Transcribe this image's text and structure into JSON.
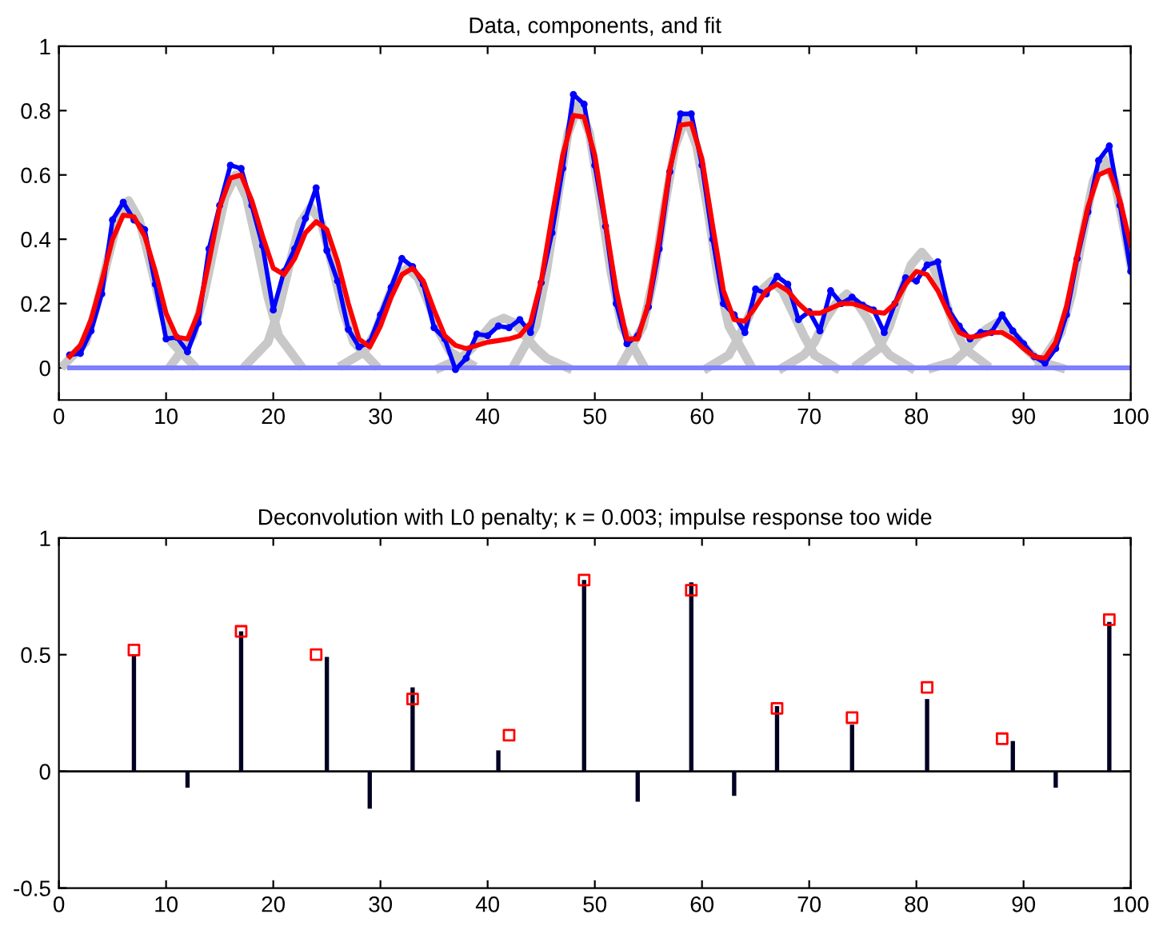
{
  "chart_data": [
    {
      "type": "line",
      "title": "Data, components, and fit",
      "xlim": [
        0,
        100
      ],
      "ylim": [
        -0.1,
        1
      ],
      "xticks": [
        0,
        10,
        20,
        30,
        40,
        50,
        60,
        70,
        80,
        90,
        100
      ],
      "yticks": [
        0,
        0.2,
        0.4,
        0.6,
        0.8,
        1
      ],
      "grid": false,
      "legend": false,
      "series": [
        {
          "color": "#c8c8c8",
          "x": [
            0.5,
            2.5,
            3.5,
            4.5,
            5.5,
            6.5,
            7.5,
            8.5,
            9.5,
            10.5,
            12.5
          ],
          "values": [
            0.01,
            0.08,
            0.19,
            0.33,
            0.46,
            0.52,
            0.46,
            0.33,
            0.19,
            0.08,
            0.01
          ]
        },
        {
          "color": "#c8c8c8",
          "x": [
            10.5,
            12.5,
            13.5,
            14.5,
            15.5,
            16.5,
            17.5,
            18.5,
            19.5,
            20.5,
            22.5
          ],
          "values": [
            0.01,
            0.1,
            0.22,
            0.38,
            0.53,
            0.6,
            0.53,
            0.38,
            0.22,
            0.1,
            0.01
          ]
        },
        {
          "color": "#c8c8c8",
          "x": [
            17.5,
            19.5,
            20.5,
            21.5,
            22.5,
            23.5,
            24.5,
            25.5,
            26.5,
            27.5,
            29.5
          ],
          "values": [
            0.01,
            0.08,
            0.18,
            0.32,
            0.45,
            0.5,
            0.45,
            0.32,
            0.18,
            0.08,
            0.01
          ]
        },
        {
          "color": "#c8c8c8",
          "x": [
            26.5,
            28.5,
            29.5,
            30.5,
            31.5,
            32.5,
            33.5,
            34.5,
            35.5,
            36.5,
            38.5
          ],
          "values": [
            0.01,
            0.05,
            0.11,
            0.2,
            0.28,
            0.31,
            0.28,
            0.2,
            0.11,
            0.05,
            0.01
          ]
        },
        {
          "color": "#c8c8c8",
          "x": [
            35.5,
            37.5,
            38.5,
            39.5,
            40.5,
            41.5,
            42.5,
            43.5,
            44.5,
            45.5,
            47.5
          ],
          "values": [
            0,
            0.03,
            0.06,
            0.1,
            0.14,
            0.155,
            0.14,
            0.1,
            0.06,
            0.03,
            0
          ]
        },
        {
          "color": "#c8c8c8",
          "x": [
            42.5,
            44.5,
            45.5,
            46.5,
            47.5,
            48.5,
            49.5,
            50.5,
            51.5,
            52.5,
            54.5
          ],
          "values": [
            0.01,
            0.13,
            0.3,
            0.52,
            0.73,
            0.82,
            0.73,
            0.52,
            0.3,
            0.13,
            0.01
          ]
        },
        {
          "color": "#c8c8c8",
          "x": [
            52.5,
            54.5,
            55.5,
            56.5,
            57.5,
            58.5,
            59.5,
            60.5,
            61.5,
            62.5,
            64.5
          ],
          "values": [
            0.01,
            0.13,
            0.28,
            0.5,
            0.69,
            0.78,
            0.69,
            0.5,
            0.28,
            0.13,
            0.01
          ]
        },
        {
          "color": "#c8c8c8",
          "x": [
            60.5,
            62.5,
            63.5,
            64.5,
            65.5,
            66.5,
            67.5,
            68.5,
            69.5,
            70.5,
            72.5
          ],
          "values": [
            0,
            0.04,
            0.1,
            0.17,
            0.24,
            0.27,
            0.24,
            0.17,
            0.1,
            0.04,
            0
          ]
        },
        {
          "color": "#c8c8c8",
          "x": [
            67.5,
            69.5,
            70.5,
            71.5,
            72.5,
            73.5,
            74.5,
            75.5,
            76.5,
            77.5,
            79.5
          ],
          "values": [
            0,
            0.04,
            0.08,
            0.15,
            0.2,
            0.23,
            0.2,
            0.15,
            0.08,
            0.04,
            0
          ]
        },
        {
          "color": "#c8c8c8",
          "x": [
            74.5,
            76.5,
            77.5,
            78.5,
            79.5,
            80.5,
            81.5,
            82.5,
            83.5,
            84.5,
            86.5
          ],
          "values": [
            0.01,
            0.06,
            0.13,
            0.23,
            0.32,
            0.36,
            0.32,
            0.23,
            0.13,
            0.06,
            0.01
          ]
        },
        {
          "color": "#c8c8c8",
          "x": [
            81.5,
            83.5,
            84.5,
            85.5,
            86.5,
            87.5,
            88.5,
            89.5,
            90.5,
            91.5,
            93.5
          ],
          "values": [
            0,
            0.02,
            0.05,
            0.09,
            0.12,
            0.14,
            0.12,
            0.09,
            0.05,
            0.02,
            0
          ]
        },
        {
          "color": "#c8c8c8",
          "x": [
            91.5,
            93.5,
            94.5,
            95.5,
            96.5,
            97.5,
            98.5,
            99.5,
            100
          ],
          "values": [
            0.01,
            0.11,
            0.23,
            0.41,
            0.58,
            0.65,
            0.58,
            0.41,
            0.32
          ]
        },
        {
          "color": "#7f7fff",
          "x": [
            1,
            100
          ],
          "values": [
            0,
            0
          ]
        },
        {
          "color": "#0000ff",
          "marker": "circle",
          "x": [
            1,
            2,
            3,
            4,
            5,
            6,
            7,
            8,
            9,
            10,
            11,
            12,
            13,
            14,
            15,
            16,
            17,
            18,
            19,
            20,
            21,
            22,
            23,
            24,
            25,
            26,
            27,
            28,
            29,
            30,
            31,
            32,
            33,
            34,
            35,
            36,
            37,
            38,
            39,
            40,
            41,
            42,
            43,
            44,
            45,
            46,
            47,
            48,
            49,
            50,
            51,
            52,
            53,
            54,
            55,
            56,
            57,
            58,
            59,
            60,
            61,
            62,
            63,
            64,
            65,
            66,
            67,
            68,
            69,
            70,
            71,
            72,
            73,
            74,
            75,
            76,
            77,
            78,
            79,
            80,
            81,
            82,
            83,
            84,
            85,
            86,
            87,
            88,
            89,
            90,
            91,
            92,
            93,
            94,
            95,
            96,
            97,
            98,
            99,
            100
          ],
          "values": [
            0.04,
            0.045,
            0.115,
            0.23,
            0.46,
            0.515,
            0.46,
            0.43,
            0.26,
            0.09,
            0.095,
            0.05,
            0.14,
            0.37,
            0.505,
            0.63,
            0.62,
            0.505,
            0.38,
            0.18,
            0.3,
            0.37,
            0.465,
            0.56,
            0.365,
            0.27,
            0.12,
            0.065,
            0.08,
            0.165,
            0.25,
            0.34,
            0.315,
            0.26,
            0.125,
            0.09,
            -0.005,
            0.03,
            0.105,
            0.1,
            0.13,
            0.125,
            0.15,
            0.11,
            0.265,
            0.42,
            0.62,
            0.85,
            0.82,
            0.63,
            0.44,
            0.2,
            0.075,
            0.1,
            0.19,
            0.37,
            0.61,
            0.79,
            0.79,
            0.63,
            0.4,
            0.2,
            0.165,
            0.11,
            0.245,
            0.23,
            0.285,
            0.26,
            0.15,
            0.175,
            0.115,
            0.24,
            0.2,
            0.22,
            0.195,
            0.18,
            0.11,
            0.2,
            0.28,
            0.27,
            0.32,
            0.33,
            0.18,
            0.13,
            0.09,
            0.11,
            0.11,
            0.165,
            0.115,
            0.075,
            0.035,
            0.015,
            0.06,
            0.165,
            0.34,
            0.485,
            0.645,
            0.69,
            0.505,
            0.3
          ]
        },
        {
          "color": "#ff0000",
          "x": [
            1,
            2,
            3,
            4,
            5,
            6,
            7,
            8,
            9,
            10,
            11,
            12,
            13,
            14,
            15,
            16,
            17,
            18,
            19,
            20,
            21,
            22,
            23,
            24,
            25,
            26,
            27,
            28,
            29,
            30,
            31,
            32,
            33,
            34,
            35,
            36,
            37,
            38,
            39,
            40,
            41,
            42,
            43,
            44,
            45,
            46,
            47,
            48,
            49,
            50,
            51,
            52,
            53,
            54,
            55,
            56,
            57,
            58,
            59,
            60,
            61,
            62,
            63,
            64,
            65,
            66,
            67,
            68,
            69,
            70,
            71,
            72,
            73,
            74,
            75,
            76,
            77,
            78,
            79,
            80,
            81,
            82,
            83,
            84,
            85,
            86,
            87,
            88,
            89,
            90,
            91,
            92,
            93,
            94,
            95,
            96,
            97,
            98,
            99,
            100
          ],
          "values": [
            0.035,
            0.07,
            0.15,
            0.27,
            0.4,
            0.475,
            0.47,
            0.41,
            0.3,
            0.17,
            0.095,
            0.09,
            0.17,
            0.33,
            0.5,
            0.59,
            0.6,
            0.52,
            0.41,
            0.31,
            0.29,
            0.34,
            0.42,
            0.455,
            0.43,
            0.33,
            0.2,
            0.09,
            0.065,
            0.13,
            0.22,
            0.29,
            0.31,
            0.27,
            0.18,
            0.1,
            0.07,
            0.06,
            0.07,
            0.08,
            0.085,
            0.09,
            0.1,
            0.14,
            0.27,
            0.47,
            0.66,
            0.785,
            0.78,
            0.66,
            0.45,
            0.24,
            0.09,
            0.09,
            0.2,
            0.4,
            0.62,
            0.755,
            0.76,
            0.65,
            0.44,
            0.24,
            0.15,
            0.145,
            0.19,
            0.24,
            0.26,
            0.24,
            0.2,
            0.17,
            0.17,
            0.185,
            0.2,
            0.2,
            0.19,
            0.175,
            0.17,
            0.2,
            0.26,
            0.3,
            0.29,
            0.24,
            0.17,
            0.11,
            0.095,
            0.1,
            0.11,
            0.11,
            0.09,
            0.06,
            0.035,
            0.03,
            0.08,
            0.19,
            0.35,
            0.5,
            0.6,
            0.615,
            0.52,
            0.38
          ]
        }
      ]
    },
    {
      "type": "bar",
      "title": "Deconvolution with L0 penalty; κ = 0.003; impulse response too wide",
      "xlim": [
        0,
        100
      ],
      "ylim": [
        -0.5,
        1
      ],
      "xticks": [
        0,
        10,
        20,
        30,
        40,
        50,
        60,
        70,
        80,
        90,
        100
      ],
      "yticks": [
        -0.5,
        0,
        0.5,
        1
      ],
      "grid": false,
      "legend": false,
      "ref_lines": [
        {
          "axis": "y",
          "value": 0,
          "color": "#000000"
        }
      ],
      "series": [
        {
          "color": "#000022",
          "x": [
            7,
            12,
            17,
            25,
            29,
            33,
            36,
            37,
            41,
            49,
            54,
            59,
            63,
            67,
            74,
            81,
            89,
            93,
            98
          ],
          "values": [
            0.5,
            -0.07,
            0.6,
            0.49,
            -0.16,
            0.36,
            null,
            null,
            0.09,
            0.82,
            -0.13,
            0.81,
            -0.105,
            0.28,
            0.2,
            0.31,
            0.13,
            -0.07,
            0.64
          ]
        },
        {
          "type": "scatter",
          "marker": "square",
          "color": "#ff0000",
          "x": [
            7,
            17,
            24,
            33,
            42,
            49,
            59,
            67,
            74,
            81,
            88,
            98
          ],
          "values": [
            0.52,
            0.6,
            0.5,
            0.31,
            0.155,
            0.82,
            0.776,
            0.27,
            0.23,
            0.36,
            0.14,
            0.65
          ]
        }
      ]
    }
  ]
}
